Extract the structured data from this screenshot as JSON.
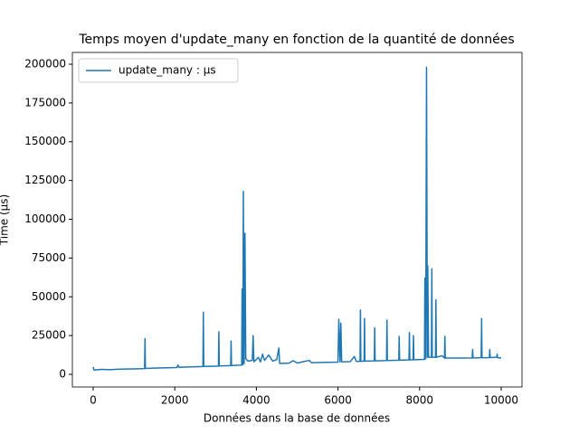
{
  "chart_data": {
    "type": "line",
    "title": "Temps moyen d'update_many en fonction de la quantité de données",
    "x_label": "Données dans la base de données",
    "y_label": "Time (µs)",
    "legend": "upper left",
    "grid": false,
    "xlim": [
      -510,
      10510
    ],
    "ylim": [
      -8163,
      207580
    ],
    "xticks": [
      0,
      2000,
      4000,
      6000,
      8000,
      10000
    ],
    "yticks": [
      0,
      25000,
      50000,
      75000,
      100000,
      125000,
      150000,
      175000,
      200000
    ],
    "x": [
      0,
      20,
      200,
      400,
      600,
      800,
      1000,
      1260,
      1270,
      1280,
      1500,
      1800,
      2050,
      2080,
      2100,
      2400,
      2690,
      2700,
      2710,
      2900,
      3070,
      3080,
      3090,
      3370,
      3380,
      3390,
      3600,
      3640,
      3650,
      3670,
      3680,
      3700,
      3720,
      3740,
      3800,
      3900,
      3920,
      3940,
      4050,
      4100,
      4150,
      4200,
      4300,
      4400,
      4500,
      4550,
      4570,
      4800,
      4900,
      5000,
      5300,
      5350,
      5700,
      6000,
      6020,
      6050,
      6070,
      6090,
      6300,
      6400,
      6450,
      6540,
      6550,
      6560,
      6640,
      6650,
      6660,
      6890,
      6900,
      6910,
      7190,
      7200,
      7210,
      7490,
      7500,
      7510,
      7740,
      7750,
      7760,
      7840,
      7850,
      7860,
      8120,
      8130,
      8150,
      8170,
      8190,
      8200,
      8220,
      8290,
      8300,
      8310,
      8390,
      8400,
      8410,
      8550,
      8610,
      8620,
      8630,
      9000,
      9290,
      9300,
      9310,
      9510,
      9520,
      9530,
      9710,
      9720,
      9730,
      9890,
      9900,
      9910,
      10000
    ],
    "series": [
      {
        "name": "update_many : µs",
        "color": "#1f77b4",
        "values": [
          4800,
          2800,
          3200,
          3000,
          3300,
          3400,
          3500,
          3700,
          23000,
          3800,
          4000,
          4200,
          4400,
          6000,
          4500,
          4800,
          5000,
          40000,
          5100,
          5200,
          5300,
          27500,
          5400,
          5600,
          21500,
          5700,
          5900,
          6000,
          55000,
          6200,
          118000,
          7000,
          91000,
          10000,
          8500,
          9000,
          25000,
          8000,
          11000,
          8000,
          13000,
          9000,
          12500,
          8500,
          9500,
          17000,
          7000,
          7200,
          8800,
          7300,
          9000,
          7500,
          7700,
          7900,
          35500,
          8000,
          33000,
          8000,
          8200,
          11500,
          8300,
          8400,
          41500,
          8400,
          8500,
          36000,
          8500,
          8700,
          30000,
          8700,
          8900,
          35000,
          8900,
          9100,
          24500,
          9100,
          9300,
          27000,
          9300,
          9400,
          25000,
          9400,
          9600,
          62000,
          10000,
          198000,
          11000,
          70000,
          11000,
          11000,
          68000,
          11000,
          11000,
          48000,
          11000,
          12000,
          10500,
          24500,
          10500,
          10500,
          10600,
          16000,
          10600,
          10700,
          36000,
          10700,
          10800,
          16000,
          10800,
          11000,
          13000,
          10800,
          10500
        ]
      }
    ]
  }
}
